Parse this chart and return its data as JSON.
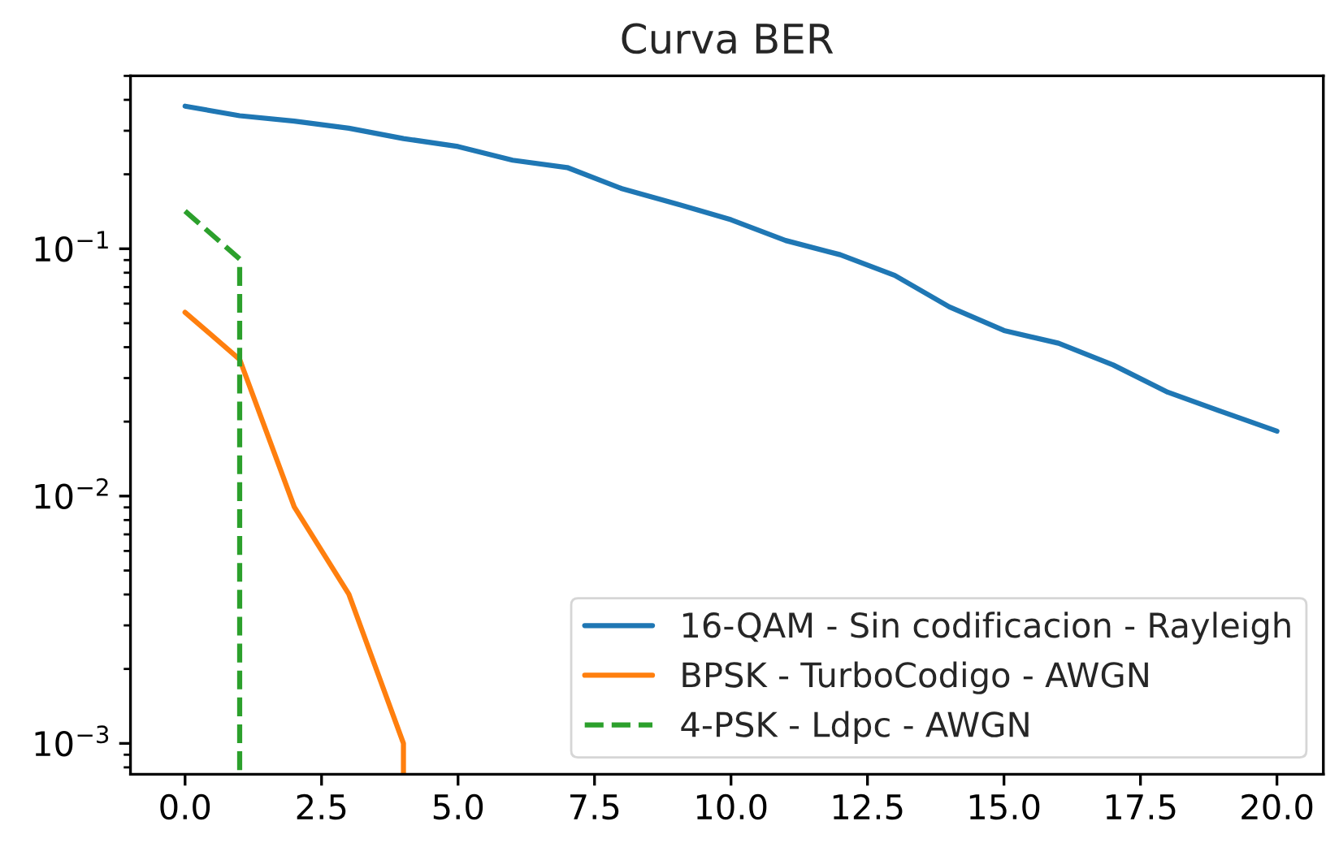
{
  "chart_data": {
    "type": "line",
    "title": "Curva BER",
    "log": "y",
    "legend": "bottom right",
    "xlim": [
      -1,
      20.85
    ],
    "xticks": [
      {
        "value": 0,
        "label": "0.0"
      },
      2.5,
      {
        "value": 5,
        "label": "5.0"
      },
      7.5,
      {
        "value": 10,
        "label": "10.0"
      },
      12.5,
      {
        "value": 15,
        "label": "15.0"
      },
      17.5,
      {
        "value": 20,
        "label": "20.0"
      }
    ],
    "ylim": [
      0.00075,
      0.5
    ],
    "yticks": [
      {
        "value": 0.001,
        "label": "10$^{−3}$"
      },
      {
        "value": 0.01,
        "label": "10$^{−2}$"
      },
      {
        "value": 0.1,
        "label": "10$^{−1}$"
      }
    ],
    "series": [
      {
        "name": "16-QAM - Sin codificacion - Rayleigh",
        "color": "#1f77b4",
        "line_style": "solid",
        "x": [
          0,
          1,
          2,
          3,
          4,
          5,
          6,
          7,
          8,
          9,
          10,
          11,
          12,
          13,
          14,
          15,
          16,
          17,
          18,
          19,
          20
        ],
        "values": [
          0.377,
          0.345,
          0.328,
          0.307,
          0.279,
          0.259,
          0.228,
          0.213,
          0.175,
          0.152,
          0.131,
          0.108,
          0.0946,
          0.078,
          0.0582,
          0.0467,
          0.0415,
          0.0339,
          0.0263,
          0.0219,
          0.0183
        ]
      },
      {
        "name": "BPSK - TurboCodigo - AWGN",
        "color": "#ff7f0e",
        "line_style": "solid",
        "x": [
          0,
          1,
          2,
          3,
          4,
          4
        ],
        "values": [
          0.0553,
          0.0357,
          0.00904,
          0.00401,
          0.001,
          0.00075
        ]
      },
      {
        "name": "4-PSK - Ldpc - AWGN",
        "color": "#2ca02c",
        "line_style": "dashed",
        "x": [
          0,
          1,
          1
        ],
        "values": [
          0.142,
          0.0909,
          0.00075
        ]
      }
    ]
  }
}
